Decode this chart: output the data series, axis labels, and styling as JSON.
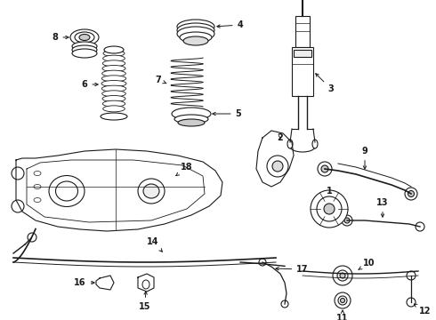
{
  "bg": "#ffffff",
  "col": "#1a1a1a",
  "fig_w": 4.9,
  "fig_h": 3.6,
  "dpi": 100,
  "lw": 0.8
}
